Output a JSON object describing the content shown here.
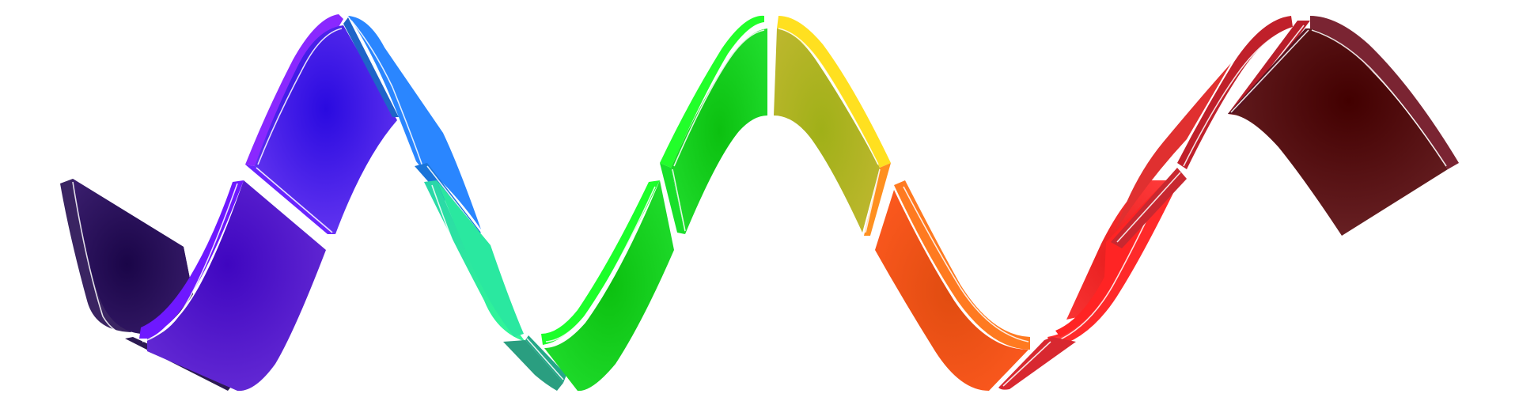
{
  "artwork": {
    "subject": "wave-ribbon",
    "segments": [
      {
        "name": "dark-purple",
        "color": "#2a0a55"
      },
      {
        "name": "violet",
        "color": "#4a12c8"
      },
      {
        "name": "indigo",
        "color": "#3a16e0"
      },
      {
        "name": "blue",
        "color": "#2f7cf0"
      },
      {
        "name": "teal",
        "color": "#2ae8a0"
      },
      {
        "name": "green-dark",
        "color": "#18c820"
      },
      {
        "name": "green",
        "color": "#1acb1a"
      },
      {
        "name": "olive-yellow",
        "color": "#a8b020"
      },
      {
        "name": "orange",
        "color": "#e85a18"
      },
      {
        "name": "red",
        "color": "#ff2a2a"
      },
      {
        "name": "crimson",
        "color": "#c02630"
      },
      {
        "name": "maroon",
        "color": "#4a0808"
      }
    ]
  }
}
